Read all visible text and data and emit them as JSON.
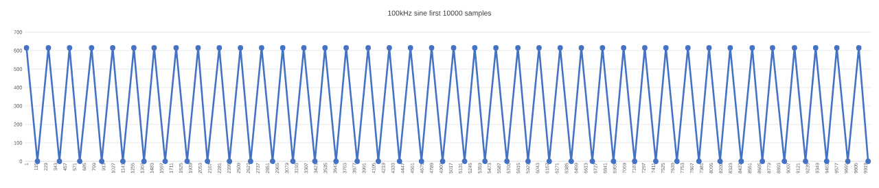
{
  "chart_data": {
    "type": "line",
    "title": "100kHz sine first 10000 samples",
    "x": [
      1,
      130,
      260,
      390,
      510,
      630,
      770,
      890,
      1020,
      1140,
      1270,
      1390,
      1510,
      1640,
      1770,
      1900,
      2030,
      2140,
      2280,
      2400,
      2530,
      2650,
      2780,
      2910,
      3030,
      3150,
      3280,
      3410,
      3530,
      3660,
      3780,
      3910,
      4040,
      4160,
      4290,
      4410,
      4540,
      4670,
      4790,
      4920,
      5050,
      5180,
      5300,
      5420,
      5550,
      5680,
      5810,
      5930,
      6060,
      6180,
      6310,
      6440,
      6560,
      6690,
      6810,
      6940,
      7060,
      7190,
      7310,
      7440,
      7560,
      7690,
      7820,
      7950,
      8070,
      8200,
      8320,
      8450,
      8580,
      8700,
      8820,
      8960,
      9080,
      9210,
      9330,
      9460,
      9580,
      9710,
      9840,
      9950
    ],
    "series": [
      {
        "color": "#4472c4",
        "values": [
          615,
          0,
          615,
          0,
          615,
          0,
          615,
          0,
          615,
          0,
          615,
          0,
          615,
          0,
          615,
          0,
          615,
          0,
          615,
          0,
          615,
          0,
          615,
          0,
          615,
          0,
          615,
          0,
          615,
          0,
          615,
          0,
          615,
          0,
          615,
          0,
          615,
          0,
          615,
          0,
          615,
          0,
          615,
          0,
          615,
          0,
          615,
          0,
          615,
          0,
          615,
          0,
          615,
          0,
          615,
          0,
          615,
          0,
          615,
          0,
          615,
          0,
          615,
          0,
          615,
          0,
          615,
          0,
          615,
          0,
          615,
          0,
          615,
          0,
          615,
          0,
          615,
          0,
          615,
          0
        ]
      }
    ],
    "xlim": [
      -20,
      9990
    ],
    "xticks": [
      1,
      115,
      229,
      343,
      457,
      571,
      685,
      799,
      913,
      1027,
      1141,
      1255,
      1369,
      1483,
      1597,
      1711,
      1825,
      1939,
      2053,
      2167,
      2281,
      2395,
      2509,
      2623,
      2737,
      2851,
      2965,
      3079,
      3193,
      3307,
      3421,
      3535,
      3649,
      3763,
      3877,
      3991,
      4105,
      4219,
      4333,
      4447,
      4561,
      4675,
      4789,
      4903,
      5017,
      5131,
      5245,
      5359,
      5473,
      5587,
      5701,
      5815,
      5929,
      6043,
      6157,
      6271,
      6385,
      6499,
      6613,
      6727,
      6841,
      6955,
      7069,
      7183,
      7297,
      7411,
      7525,
      7639,
      7753,
      7867,
      7981,
      8095,
      8209,
      8323,
      8437,
      8551,
      8665,
      8779,
      8893,
      9007,
      9121,
      9235,
      9349,
      9463,
      9577,
      9691,
      9805,
      9919
    ],
    "ylim": [
      0,
      700
    ],
    "yticks": [
      0,
      100,
      200,
      300,
      400,
      500,
      600,
      700
    ],
    "grid": "y",
    "marker": "circle",
    "line_style": "solid"
  }
}
